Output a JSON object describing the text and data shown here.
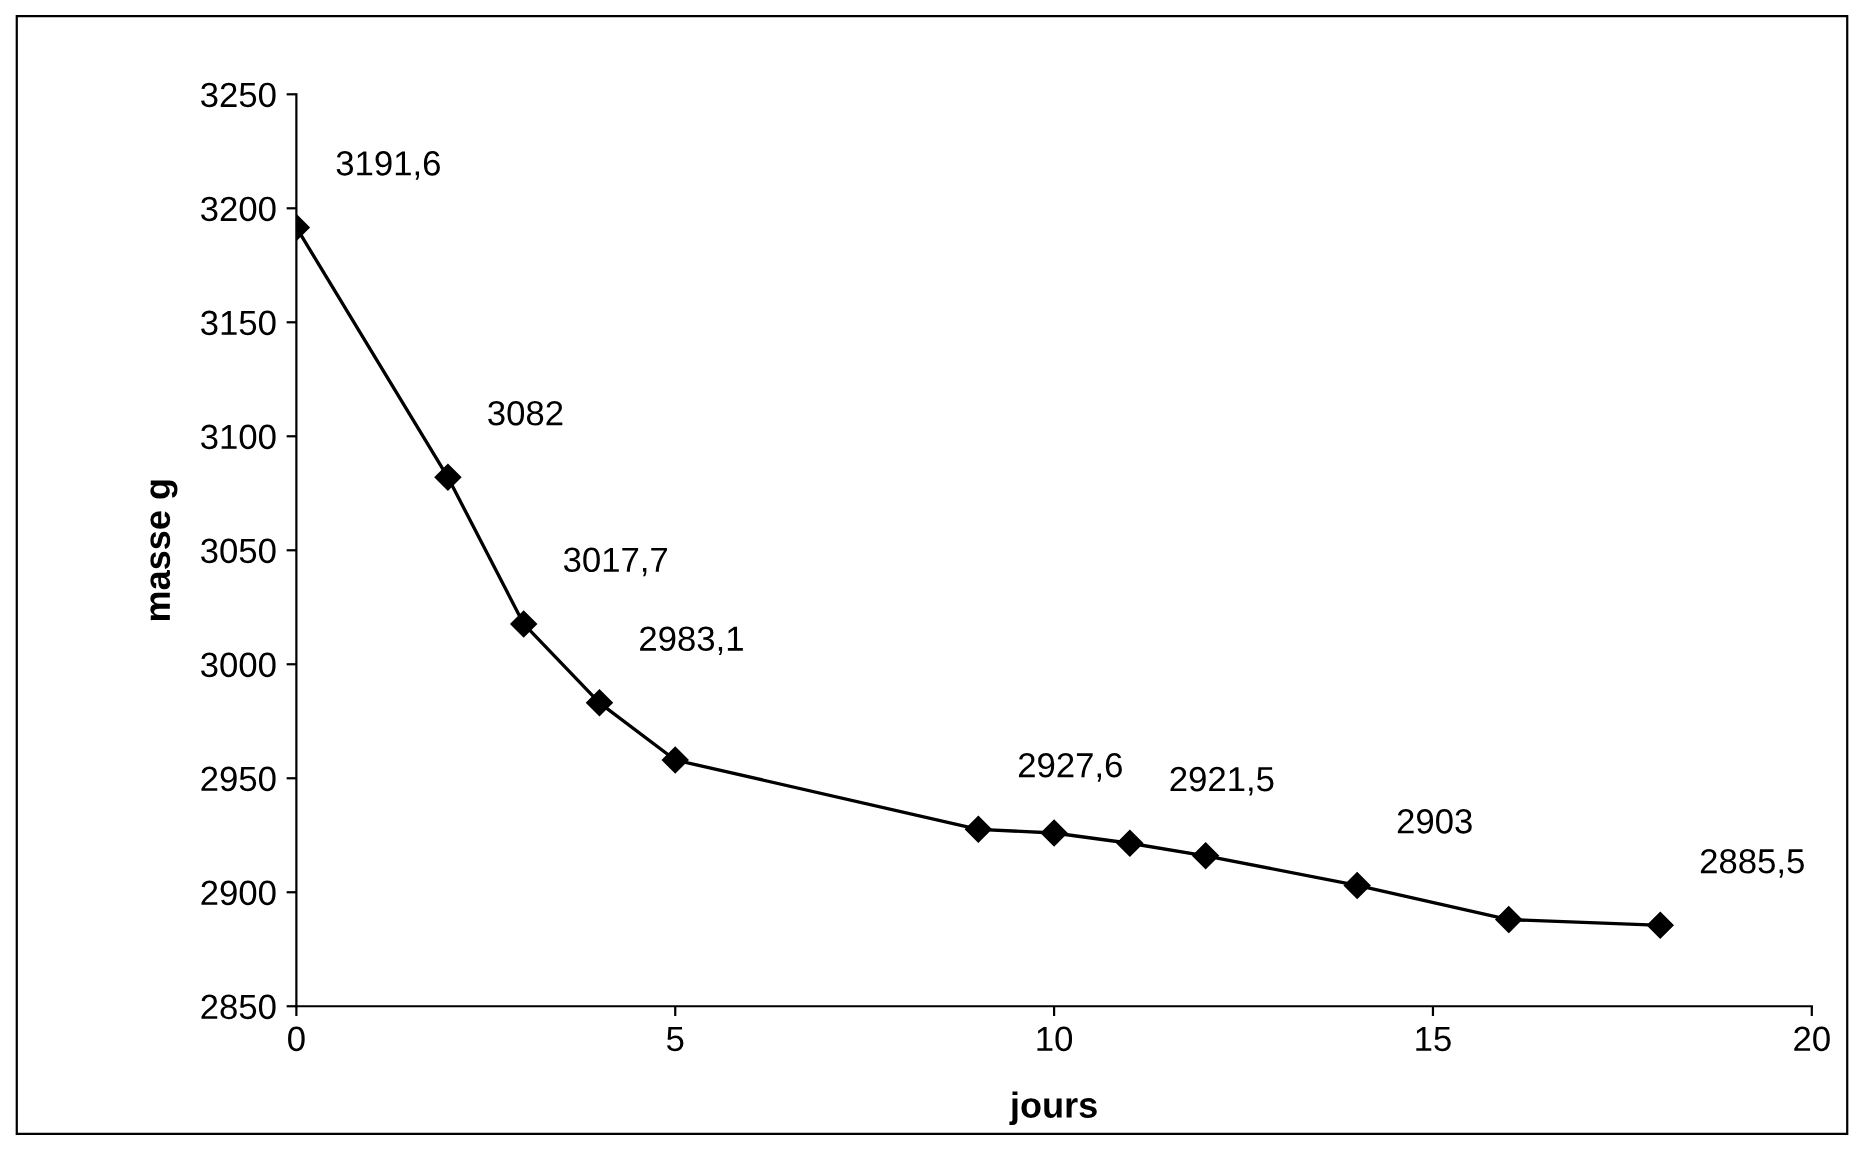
{
  "chart_data": {
    "type": "line",
    "xlabel": "jours",
    "ylabel": "masse g",
    "x": [
      0,
      2,
      3,
      4,
      5,
      9,
      10,
      11,
      12,
      14,
      16,
      18
    ],
    "values": [
      3191.6,
      3082,
      3017.7,
      2983.1,
      2958,
      2927.6,
      2926,
      2921.5,
      2916,
      2903,
      2888,
      2885.5
    ],
    "value_labels": [
      "3191,6",
      "3082",
      "3017,7",
      "2983,1",
      null,
      "2927,6",
      null,
      "2921,5",
      null,
      "2903",
      null,
      "2885,5"
    ],
    "color": "#000000",
    "marker": "diamond",
    "line_style": "solid",
    "xlim": [
      0,
      20
    ],
    "xticks": [
      0,
      5,
      10,
      15,
      20
    ],
    "ylim": [
      2850,
      3250
    ],
    "yticks": [
      2850,
      2900,
      2950,
      3000,
      3050,
      3100,
      3150,
      3200,
      3250
    ],
    "grid": false,
    "legend": false
  }
}
